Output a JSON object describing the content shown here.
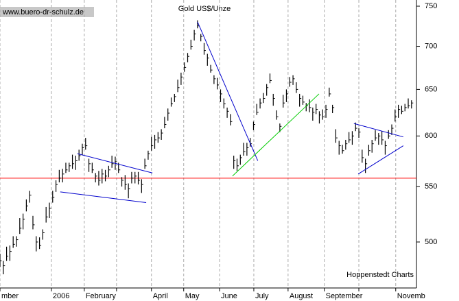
{
  "chart_data": {
    "type": "ohlc",
    "title": "Gold US$/Unze",
    "watermark": "www.buero-dr-schulz.de",
    "source": "Hoppenstedt Charts",
    "color": "#000000",
    "x": [
      0,
      1,
      2,
      3,
      4,
      5,
      6,
      7,
      8,
      9,
      10,
      11,
      12,
      13,
      14,
      15,
      16,
      17,
      18,
      19,
      20,
      21,
      22,
      23,
      24,
      25,
      26,
      27,
      28,
      29,
      30,
      31,
      32,
      33,
      34,
      35,
      36,
      37,
      38,
      39,
      40,
      41,
      42,
      43,
      44,
      45,
      46,
      47,
      48,
      49,
      50,
      51,
      52,
      53,
      54,
      55,
      56,
      57,
      58,
      59,
      60,
      61,
      62,
      63,
      64,
      65,
      66,
      67,
      68,
      69,
      70,
      71,
      72,
      73,
      74,
      75,
      76,
      77,
      78,
      79,
      80,
      81,
      82,
      83,
      84,
      85,
      86,
      87,
      88,
      89,
      90,
      91,
      92,
      93,
      94,
      95,
      96,
      97,
      98,
      99,
      100,
      101,
      102,
      103,
      104,
      105,
      106,
      107,
      108,
      109,
      110,
      111,
      112,
      113,
      114,
      115,
      116,
      117,
      118,
      119,
      120,
      121,
      122,
      123,
      124,
      125
    ],
    "high": [
      490,
      484,
      496,
      497,
      505,
      505,
      521,
      525,
      538,
      546,
      523,
      505,
      504,
      511,
      531,
      535,
      546,
      556,
      566,
      567,
      573,
      573,
      581,
      580,
      586,
      592,
      598,
      577,
      573,
      563,
      565,
      567,
      566,
      570,
      580,
      579,
      573,
      559,
      561,
      553,
      564,
      564,
      564,
      557,
      577,
      585,
      599,
      601,
      604,
      607,
      620,
      629,
      641,
      645,
      661,
      669,
      681,
      692,
      708,
      720,
      732,
      715,
      704,
      691,
      678,
      666,
      663,
      650,
      640,
      630,
      623,
      580,
      577,
      581,
      593,
      593,
      598,
      615,
      634,
      640,
      646,
      656,
      668,
      645,
      627,
      613,
      644,
      650,
      664,
      666,
      658,
      645,
      643,
      635,
      639,
      630,
      634,
      626,
      628,
      633,
      652,
      633,
      607,
      595,
      591,
      596,
      604,
      605,
      614,
      608,
      586,
      577,
      591,
      596,
      606,
      603,
      605,
      595,
      606,
      612,
      628,
      633,
      632,
      634,
      640,
      638
    ],
    "low": [
      479,
      473,
      484,
      484,
      495,
      496,
      507,
      511,
      527,
      535,
      511,
      492,
      494,
      502,
      517,
      521,
      535,
      545,
      554,
      554,
      563,
      564,
      567,
      566,
      575,
      581,
      586,
      564,
      563,
      554,
      551,
      553,
      555,
      559,
      568,
      566,
      563,
      550,
      547,
      539,
      553,
      553,
      552,
      544,
      567,
      576,
      585,
      587,
      593,
      596,
      608,
      616,
      631,
      636,
      647,
      655,
      670,
      681,
      696,
      707,
      722,
      706,
      690,
      677,
      669,
      656,
      650,
      636,
      629,
      619,
      611,
      567,
      565,
      571,
      580,
      580,
      589,
      606,
      622,
      629,
      635,
      643,
      657,
      632,
      617,
      604,
      630,
      636,
      653,
      655,
      646,
      631,
      633,
      626,
      625,
      616,
      623,
      613,
      617,
      619,
      642,
      624,
      593,
      581,
      582,
      586,
      593,
      591,
      605,
      598,
      573,
      563,
      580,
      583,
      595,
      591,
      591,
      581,
      597,
      601,
      615,
      619,
      623,
      626,
      629,
      629
    ],
    "close": [
      484,
      480,
      488,
      492,
      498,
      502,
      512,
      520,
      532,
      542,
      515,
      500,
      497,
      508,
      522,
      530,
      540,
      552,
      558,
      562,
      566,
      570,
      572,
      575,
      580,
      588,
      590,
      572,
      566,
      560,
      556,
      562,
      560,
      566,
      572,
      574,
      566,
      556,
      552,
      548,
      558,
      560,
      556,
      552,
      570,
      582,
      590,
      596,
      598,
      603,
      612,
      624,
      634,
      642,
      652,
      664,
      675,
      688,
      700,
      715,
      725,
      712,
      695,
      686,
      672,
      662,
      655,
      645,
      634,
      626,
      615,
      575,
      570,
      578,
      584,
      588,
      592,
      612,
      625,
      635,
      640,
      652,
      660,
      640,
      620,
      610,
      635,
      645,
      658,
      662,
      650,
      640,
      636,
      632,
      630,
      625,
      628,
      622,
      620,
      628,
      645,
      630,
      598,
      590,
      585,
      592,
      596,
      600,
      608,
      604,
      578,
      572,
      585,
      592,
      598,
      600,
      596,
      590,
      600,
      608,
      620,
      628,
      626,
      630,
      632,
      635
    ],
    "xlim": [
      0,
      126.5
    ],
    "xticks": [
      {
        "value": 0,
        "label": "mber"
      },
      {
        "value": 15.6,
        "label": "2006"
      },
      {
        "value": 25.6,
        "label": "February"
      },
      {
        "value": 35.4,
        "label": null
      },
      {
        "value": 46,
        "label": "April"
      },
      {
        "value": 55.8,
        "label": "May"
      },
      {
        "value": 66.7,
        "label": "June"
      },
      {
        "value": 77.1,
        "label": "July"
      },
      {
        "value": 87.5,
        "label": "August"
      },
      {
        "value": 98.5,
        "label": "September"
      },
      {
        "value": 109,
        "label": null
      },
      {
        "value": 120.2,
        "label": "Novemb"
      }
    ],
    "ylim": [
      462,
      758
    ],
    "yticks": [
      500,
      550,
      600,
      650,
      700,
      750
    ],
    "log_scale": true,
    "grid": "x",
    "reference_lines": [
      {
        "value": 558,
        "color": "#ff0000"
      }
    ],
    "trend_lines": [
      {
        "x": [
          23.5,
          46.3
        ],
        "y": [
          582,
          563
        ],
        "color": "#0000cc"
      },
      {
        "x": [
          18.3,
          44.4
        ],
        "y": [
          545,
          535
        ],
        "color": "#0000cc"
      },
      {
        "x": [
          60,
          78.3
        ],
        "y": [
          730,
          575
        ],
        "color": "#0000cc"
      },
      {
        "x": [
          70.6,
          96.9
        ],
        "y": [
          560,
          645
        ],
        "color": "#00cc00"
      },
      {
        "x": [
          107.5,
          122.5
        ],
        "y": [
          613,
          599
        ],
        "color": "#0000cc"
      },
      {
        "x": [
          108.8,
          122.5
        ],
        "y": [
          562,
          590
        ],
        "color": "#0000cc"
      }
    ]
  }
}
